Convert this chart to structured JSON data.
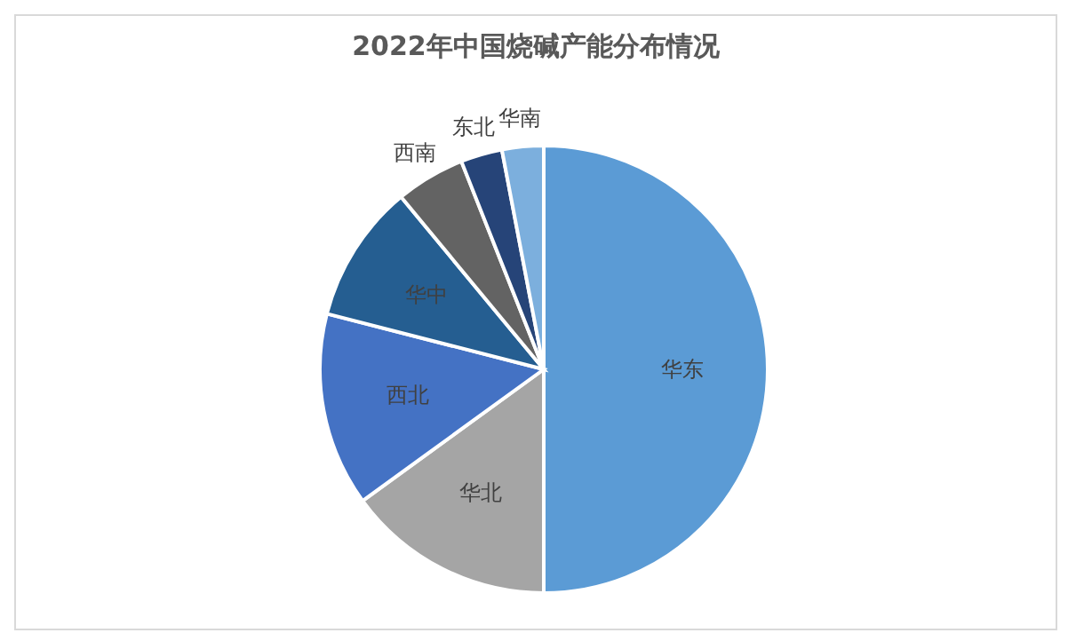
{
  "chart_data": {
    "type": "pie",
    "title": "2022年中国烧碱产能分布情况",
    "categories": [
      "华东",
      "华北",
      "西北",
      "华中",
      "西南",
      "东北",
      "华南"
    ],
    "values": [
      50,
      15,
      14,
      10,
      5,
      3,
      3
    ],
    "colors": [
      "#5b9bd5",
      "#a5a5a5",
      "#4472c4",
      "#255e91",
      "#636363",
      "#264478",
      "#7cafdd"
    ]
  }
}
